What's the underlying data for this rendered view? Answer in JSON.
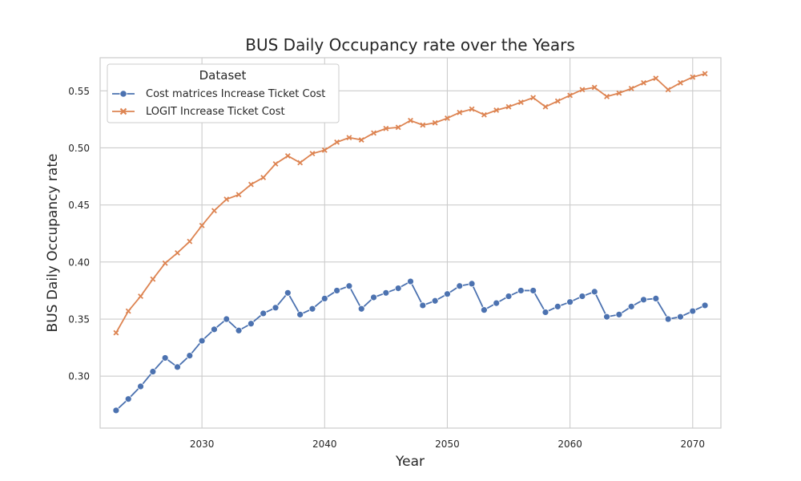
{
  "chart_data": {
    "type": "line",
    "title": "BUS Daily Occupancy rate over the Years",
    "xlabel": "Year",
    "ylabel": "BUS Daily Occupancy rate",
    "xlim": [
      2021.7,
      2072.3
    ],
    "ylim": [
      0.2545,
      0.579
    ],
    "xticks": [
      2030,
      2040,
      2050,
      2060,
      2070
    ],
    "yticks": [
      0.3,
      0.35,
      0.4,
      0.45,
      0.5,
      0.55
    ],
    "grid": true,
    "legend": {
      "title": "Dataset",
      "position": "top-left"
    },
    "x": [
      2023,
      2024,
      2025,
      2026,
      2027,
      2028,
      2029,
      2030,
      2031,
      2032,
      2033,
      2034,
      2035,
      2036,
      2037,
      2038,
      2039,
      2040,
      2041,
      2042,
      2043,
      2044,
      2045,
      2046,
      2047,
      2048,
      2049,
      2050,
      2051,
      2052,
      2053,
      2054,
      2055,
      2056,
      2057,
      2058,
      2059,
      2060,
      2061,
      2062,
      2063,
      2064,
      2065,
      2066,
      2067,
      2068,
      2069,
      2070,
      2071
    ],
    "series": [
      {
        "name": "Cost matrices Increase Ticket Cost",
        "color": "#4c72b0",
        "marker": "circle",
        "values": [
          0.27,
          0.28,
          0.291,
          0.304,
          0.316,
          0.308,
          0.318,
          0.331,
          0.341,
          0.35,
          0.34,
          0.346,
          0.355,
          0.36,
          0.373,
          0.354,
          0.359,
          0.368,
          0.375,
          0.379,
          0.359,
          0.369,
          0.373,
          0.377,
          0.383,
          0.362,
          0.366,
          0.372,
          0.379,
          0.381,
          0.358,
          0.364,
          0.37,
          0.375,
          0.375,
          0.356,
          0.361,
          0.365,
          0.37,
          0.374,
          0.352,
          0.354,
          0.361,
          0.367,
          0.368,
          0.35,
          0.352,
          0.357,
          0.362
        ]
      },
      {
        "name": "LOGIT Increase Ticket Cost",
        "color": "#dd8452",
        "marker": "x",
        "values": [
          0.338,
          0.357,
          0.37,
          0.385,
          0.399,
          0.408,
          0.418,
          0.432,
          0.445,
          0.455,
          0.459,
          0.468,
          0.474,
          0.486,
          0.493,
          0.487,
          0.495,
          0.498,
          0.505,
          0.509,
          0.507,
          0.513,
          0.517,
          0.518,
          0.524,
          0.52,
          0.522,
          0.526,
          0.531,
          0.534,
          0.529,
          0.533,
          0.536,
          0.54,
          0.544,
          0.536,
          0.541,
          0.546,
          0.551,
          0.553,
          0.545,
          0.548,
          0.552,
          0.557,
          0.561,
          0.551,
          0.557,
          0.562,
          0.565
        ]
      }
    ]
  }
}
